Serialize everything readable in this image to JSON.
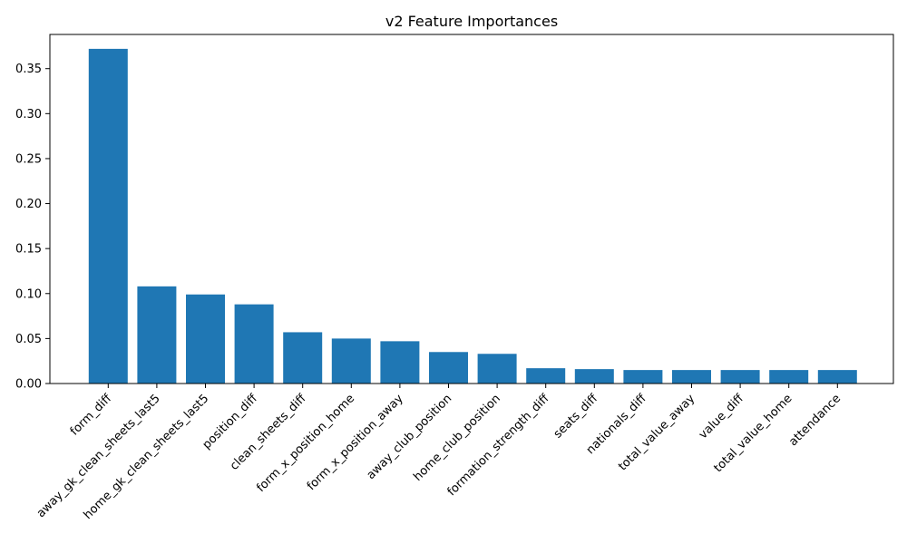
{
  "chart_data": {
    "type": "bar",
    "title": "v2 Feature Importances",
    "xlabel": "",
    "ylabel": "",
    "categories": [
      "form_diff",
      "away_gk_clean_sheets_last5",
      "home_gk_clean_sheets_last5",
      "position_diff",
      "clean_sheets_diff",
      "form_x_position_home",
      "form_x_position_away",
      "away_club_position",
      "home_club_position",
      "formation_strength_diff",
      "seats_diff",
      "nationals_diff",
      "total_value_away",
      "value_diff",
      "total_value_home",
      "attendance"
    ],
    "values": [
      0.372,
      0.108,
      0.099,
      0.088,
      0.057,
      0.05,
      0.047,
      0.035,
      0.033,
      0.017,
      0.016,
      0.015,
      0.015,
      0.015,
      0.015,
      0.015
    ],
    "ylim": [
      0,
      0.388
    ],
    "yticks": [
      0.0,
      0.05,
      0.1,
      0.15,
      0.2,
      0.25,
      0.3,
      0.35
    ],
    "ytick_labels": [
      "0.00",
      "0.05",
      "0.10",
      "0.15",
      "0.20",
      "0.25",
      "0.30",
      "0.35"
    ],
    "bar_color": "#1f77b4",
    "grid": false,
    "legend": "none"
  }
}
